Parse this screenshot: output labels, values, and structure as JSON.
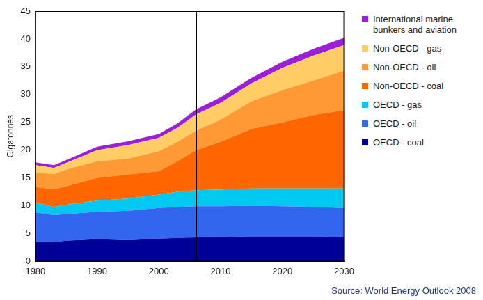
{
  "chart_data": {
    "type": "area",
    "stacked": true,
    "y_label": "Gigatonnes",
    "source": "Source: World Energy Outlook 2008",
    "x": [
      1980,
      1983,
      1985,
      1990,
      1995,
      2000,
      2003,
      2006,
      2010,
      2015,
      2020,
      2025,
      2030
    ],
    "xlim": [
      1980,
      2030
    ],
    "xticks": [
      1980,
      1990,
      2000,
      2010,
      2020,
      2030
    ],
    "ylim": [
      0,
      45
    ],
    "yticks": [
      0,
      5,
      10,
      15,
      20,
      25,
      30,
      35,
      40,
      45
    ],
    "grid": false,
    "legend": "right",
    "vline": 2006,
    "series": [
      {
        "name": "OECD - coal",
        "color": "#000099",
        "values": [
          3.5,
          3.5,
          3.7,
          4.0,
          3.8,
          4.1,
          4.2,
          4.3,
          4.4,
          4.5,
          4.5,
          4.5,
          4.4
        ]
      },
      {
        "name": "OECD - oil",
        "color": "#3366ee",
        "values": [
          5.3,
          4.8,
          4.8,
          4.9,
          5.3,
          5.5,
          5.6,
          5.6,
          5.5,
          5.5,
          5.4,
          5.3,
          5.2
        ]
      },
      {
        "name": "OECD - gas",
        "color": "#00c8f0",
        "values": [
          1.8,
          1.5,
          1.7,
          2.0,
          2.2,
          2.4,
          2.7,
          2.9,
          3.0,
          3.1,
          3.2,
          3.3,
          3.5
        ]
      },
      {
        "name": "Non-OECD - coal",
        "color": "#ff6600",
        "values": [
          2.8,
          3.1,
          3.3,
          4.1,
          4.3,
          4.2,
          5.5,
          7.2,
          8.6,
          10.7,
          11.9,
          13.2,
          14.1
        ]
      },
      {
        "name": "Non-OECD - oil",
        "color": "#ff9933",
        "values": [
          2.6,
          2.8,
          3.0,
          3.0,
          2.9,
          3.6,
          3.5,
          3.5,
          4.0,
          5.0,
          5.8,
          6.2,
          7.1
        ]
      },
      {
        "name": "Non-OECD - gas",
        "color": "#ffcc66",
        "values": [
          1.3,
          1.1,
          1.2,
          2.0,
          2.4,
          2.4,
          2.5,
          2.9,
          3.0,
          3.2,
          4.0,
          4.5,
          4.6
        ]
      },
      {
        "name": "International marine bunkers and aviation",
        "color": "#9b1fd6",
        "values": [
          0.5,
          0.5,
          0.5,
          0.6,
          0.7,
          0.7,
          0.8,
          0.9,
          1.0,
          1.0,
          1.1,
          1.2,
          1.3
        ]
      }
    ]
  }
}
